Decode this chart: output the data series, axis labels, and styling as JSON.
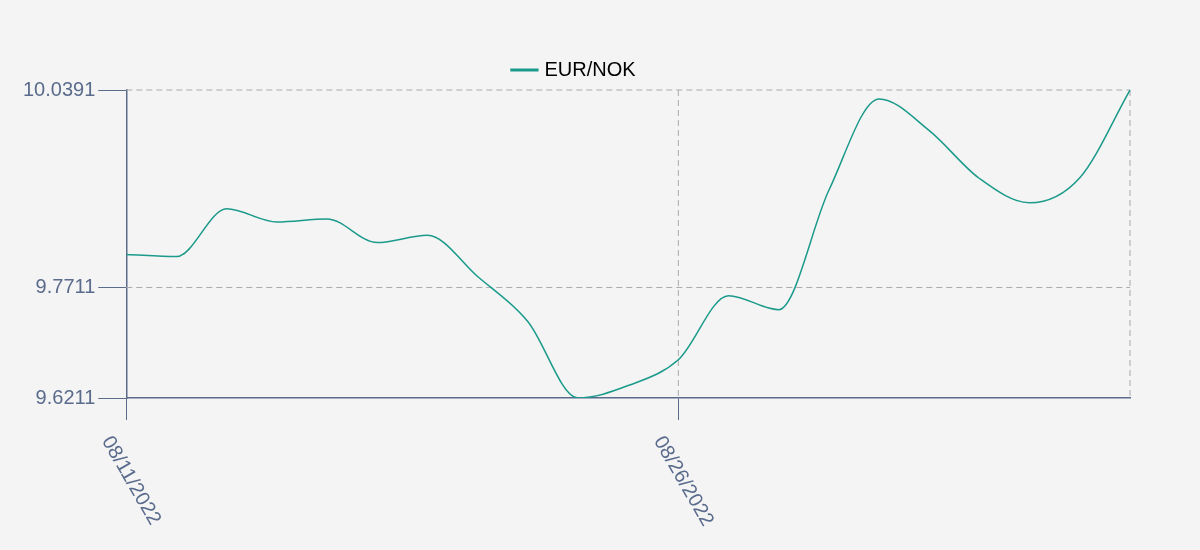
{
  "chart_data": {
    "type": "line",
    "categories": [
      "08/11/2022",
      null,
      null,
      null,
      null,
      null,
      null,
      null,
      null,
      null,
      null,
      "08/26/2022",
      null,
      null,
      null,
      null,
      null,
      null,
      null,
      null,
      null
    ],
    "series": [
      {
        "name": "EUR/NOK",
        "color": "#1a9a8a",
        "values": [
          9.816,
          9.813,
          9.878,
          9.86,
          9.864,
          9.832,
          9.842,
          9.786,
          9.725,
          9.6211,
          9.638,
          9.673,
          9.76,
          9.741,
          9.903,
          10.027,
          9.984,
          9.919,
          9.886,
          9.92,
          10.039
        ]
      }
    ],
    "ylim": [
      9.6211,
      10.0391
    ],
    "yticks": [
      9.6211,
      9.7711,
      10.0391
    ],
    "grid": true,
    "legend": "top",
    "marker": "none",
    "line_style": "solid"
  }
}
